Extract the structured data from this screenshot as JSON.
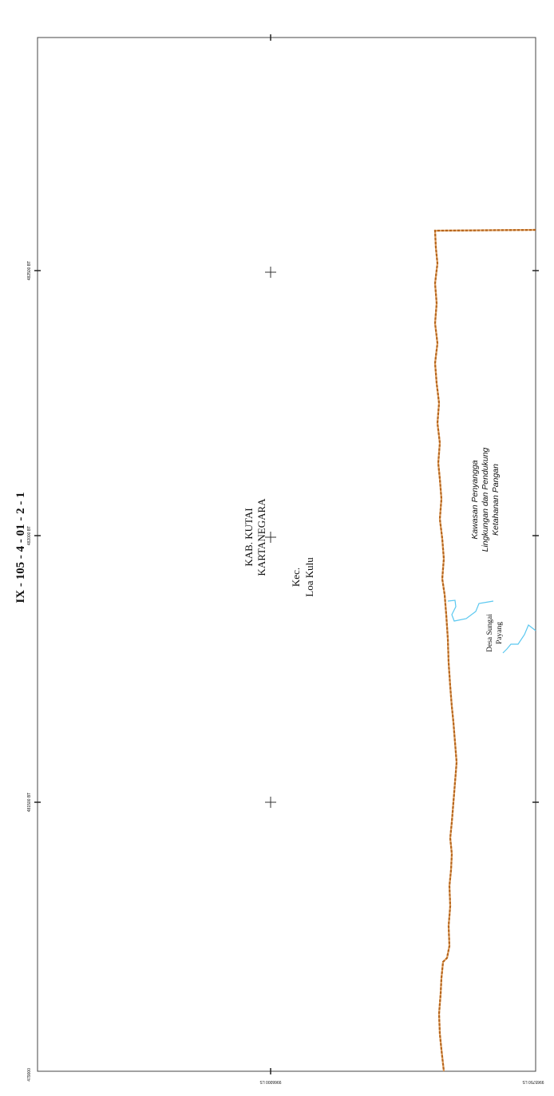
{
  "map": {
    "sheet_id": "IX - 105 - 4 - 01 - 2 - 1",
    "region_label": {
      "line1": "KAB. KUTAI",
      "line2": "KARTANEGARA"
    },
    "district_label": {
      "line1": "Kec.",
      "line2": "Loa Kulu"
    },
    "zone_label": {
      "line1": "Kawasan Penyangga",
      "line2": "Lingkungan dan Pendukung",
      "line3": "Ketahanan Pangan"
    },
    "village_label": {
      "line1": "Desa Sungai",
      "line2": "Payang"
    },
    "coord_labels_left": [
      "479000",
      "481500 BT",
      "482000 BT",
      "482500 BT"
    ],
    "coord_labels_bottom": [
      "9966000 LS",
      "9965750 LS"
    ],
    "colors": {
      "boundary": "#b5651d",
      "river": "#5bc8f0",
      "frame": "#444444"
    }
  }
}
